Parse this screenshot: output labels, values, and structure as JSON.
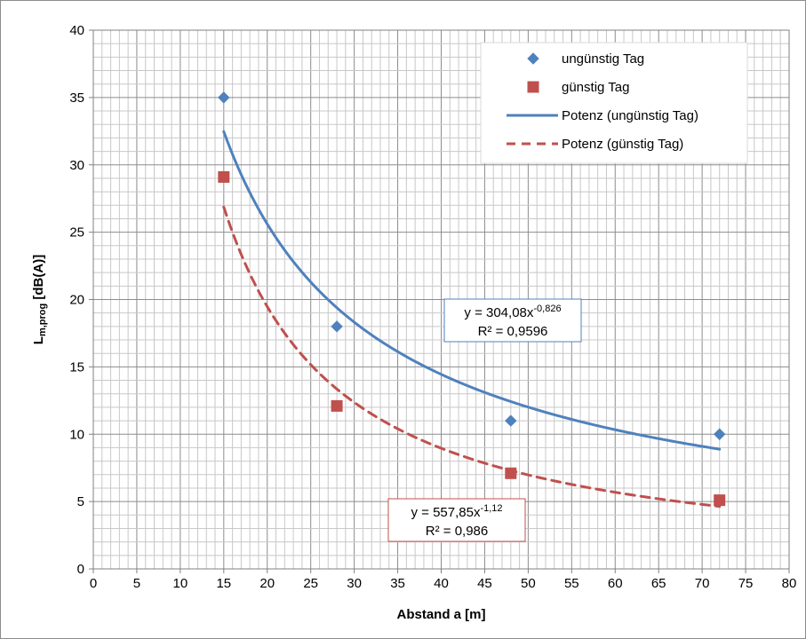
{
  "chart_data": {
    "type": "scatter",
    "title": "",
    "xlabel": "Abstand  a [m]",
    "ylabel_main": "L",
    "ylabel_sub": "m,prog",
    "ylabel_rest": " [dB(A)]",
    "xlim": [
      0,
      80
    ],
    "ylim": [
      0,
      40
    ],
    "x_ticks": [
      0,
      5,
      10,
      15,
      20,
      25,
      30,
      35,
      40,
      45,
      50,
      55,
      60,
      65,
      70,
      75,
      80
    ],
    "y_ticks": [
      0,
      5,
      10,
      15,
      20,
      25,
      30,
      35,
      40
    ],
    "grid": true,
    "minor_grid_x_step": 1,
    "minor_grid_y_step": 1,
    "legend_position": "top-right",
    "series": [
      {
        "name": "ungünstig Tag",
        "marker": "diamond",
        "color": "#4f81bd",
        "x": [
          15,
          28,
          48,
          72
        ],
        "y": [
          35,
          18,
          11,
          10
        ]
      },
      {
        "name": "günstig Tag",
        "marker": "square",
        "color": "#c0504d",
        "x": [
          15,
          28,
          48,
          72
        ],
        "y": [
          29.1,
          12.1,
          7.1,
          5.1
        ]
      }
    ],
    "trendlines": [
      {
        "name": "Potenz (ungünstig Tag)",
        "type": "power",
        "coef": 304.08,
        "exponent": -0.826,
        "x_range": [
          15,
          72
        ],
        "color": "#4f81bd",
        "style": "solid",
        "equation_main": "y = 304,08x",
        "equation_exp": "-0,826",
        "r2_label": "R² = 0,9596"
      },
      {
        "name": "Potenz (günstig Tag)",
        "type": "power",
        "coef": 557.85,
        "exponent": -1.12,
        "x_range": [
          15,
          72
        ],
        "color": "#c0504d",
        "style": "dashed",
        "equation_main": "y = 557,85x",
        "equation_exp": "-1,12",
        "r2_label": "R² = 0,986"
      }
    ]
  }
}
